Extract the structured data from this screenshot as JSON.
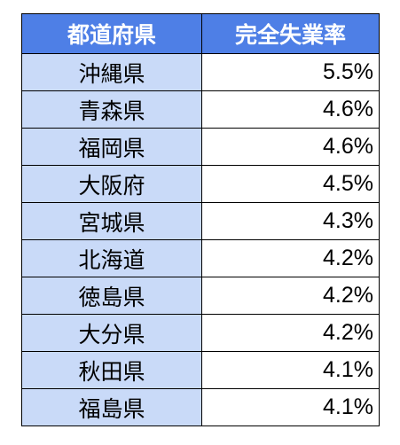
{
  "table": {
    "headers": {
      "prefecture": "都道府県",
      "rate": "完全失業率"
    },
    "rows": [
      {
        "prefecture": "沖縄県",
        "rate": "5.5%"
      },
      {
        "prefecture": "青森県",
        "rate": "4.6%"
      },
      {
        "prefecture": "福岡県",
        "rate": "4.6%"
      },
      {
        "prefecture": "大阪府",
        "rate": "4.5%"
      },
      {
        "prefecture": "宮城県",
        "rate": "4.3%"
      },
      {
        "prefecture": "北海道",
        "rate": "4.2%"
      },
      {
        "prefecture": "徳島県",
        "rate": "4.2%"
      },
      {
        "prefecture": "大分県",
        "rate": "4.2%"
      },
      {
        "prefecture": "秋田県",
        "rate": "4.1%"
      },
      {
        "prefecture": "福島県",
        "rate": "4.1%"
      }
    ]
  },
  "colors": {
    "header_bg": "#4e7fe6",
    "header_text": "#ffffff",
    "prefecture_bg": "#c9daf8",
    "rate_bg": "#ffffff",
    "border": "#000000"
  }
}
